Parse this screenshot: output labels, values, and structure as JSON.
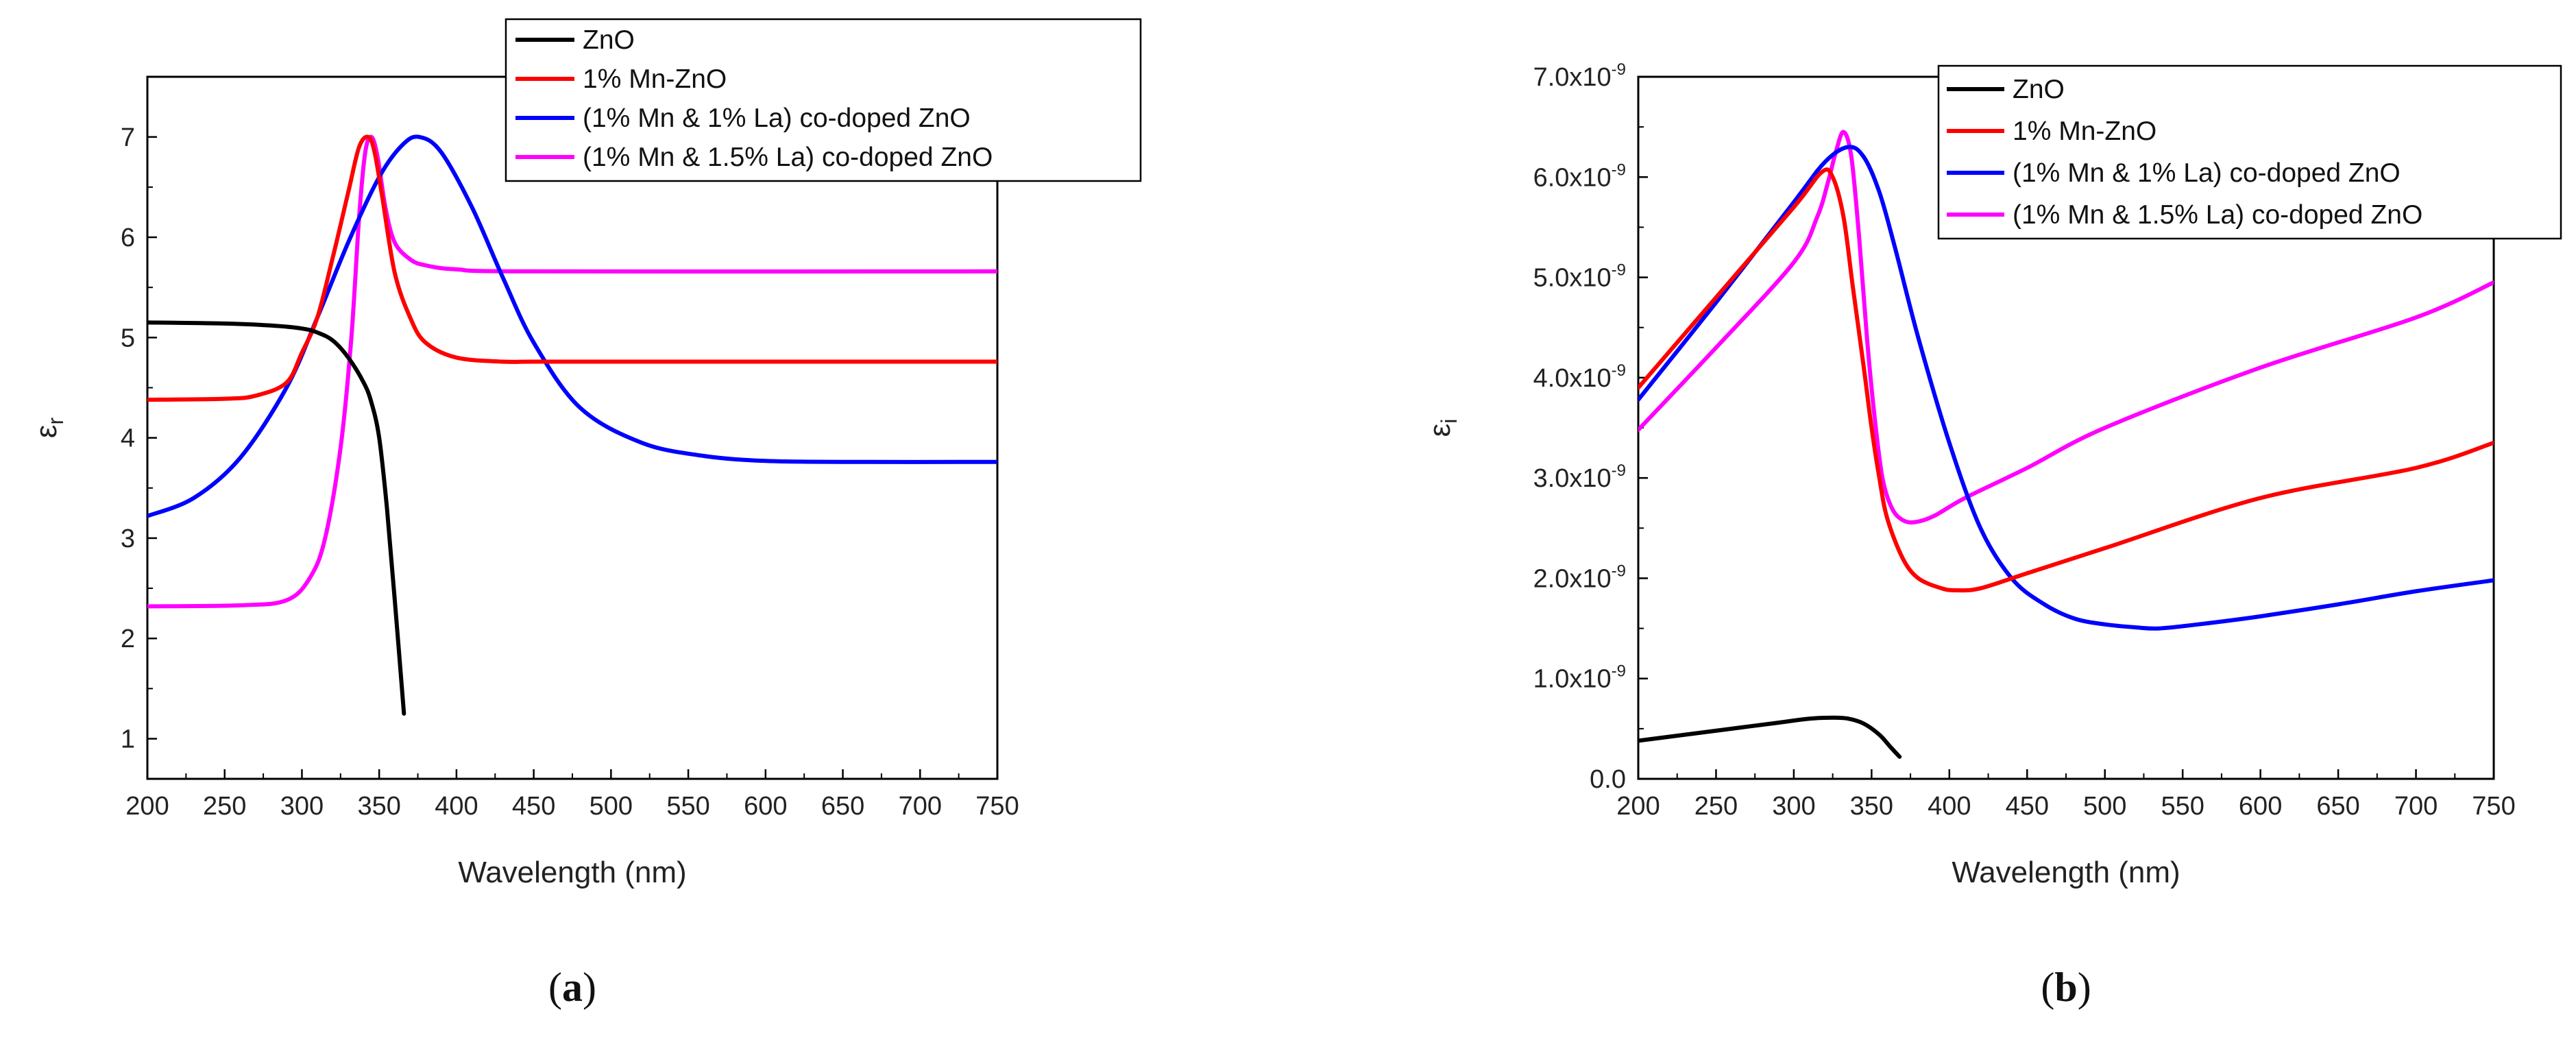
{
  "chart_data": [
    {
      "type": "line",
      "panel": "a",
      "panel_label_open": "(",
      "panel_label_letter": "a",
      "panel_label_close": ")",
      "xlabel": "Wavelength (nm)",
      "ylabel": "εr",
      "ylabel_main": "ε",
      "ylabel_sub": "r",
      "xlim": [
        200,
        750
      ],
      "ylim": [
        0.6,
        7.6
      ],
      "x_ticks": [
        200,
        250,
        300,
        350,
        400,
        450,
        500,
        550,
        600,
        650,
        700,
        750
      ],
      "x_tick_labels": [
        "200",
        "250",
        "300",
        "350",
        "400",
        "450",
        "500",
        "550",
        "600",
        "650",
        "700",
        "750"
      ],
      "y_ticks": [
        1,
        2,
        3,
        4,
        5,
        6,
        7
      ],
      "y_tick_labels": [
        "1",
        "2",
        "3",
        "4",
        "5",
        "6",
        "7"
      ],
      "legend_position": "top-right",
      "series": [
        {
          "name": "ZnO",
          "color": "#000000",
          "x": [
            200,
            250,
            280,
            300,
            310,
            320,
            330,
            340,
            345,
            350,
            355,
            360,
            366
          ],
          "y": [
            5.15,
            5.14,
            5.12,
            5.09,
            5.05,
            4.97,
            4.8,
            4.55,
            4.35,
            4.0,
            3.3,
            2.4,
            1.25
          ]
        },
        {
          "name": "1% Mn-ZnO",
          "color": "#ff0000",
          "x": [
            200,
            250,
            270,
            290,
            300,
            310,
            320,
            330,
            337,
            343,
            347,
            352,
            360,
            370,
            380,
            400,
            430,
            450,
            500,
            750
          ],
          "y": [
            4.38,
            4.39,
            4.42,
            4.55,
            4.85,
            5.2,
            5.8,
            6.45,
            6.9,
            7.0,
            6.85,
            6.4,
            5.65,
            5.2,
            4.95,
            4.8,
            4.76,
            4.76,
            4.76,
            4.76
          ]
        },
        {
          "name": "(1% Mn & 1% La) co-doped ZnO",
          "color": "#0000ff",
          "x": [
            200,
            230,
            260,
            290,
            310,
            330,
            350,
            365,
            376,
            390,
            410,
            430,
            450,
            480,
            520,
            560,
            600,
            650,
            750
          ],
          "y": [
            3.22,
            3.4,
            3.8,
            4.5,
            5.2,
            5.95,
            6.6,
            6.92,
            7.0,
            6.85,
            6.3,
            5.6,
            4.95,
            4.3,
            3.95,
            3.82,
            3.77,
            3.76,
            3.76
          ]
        },
        {
          "name": "(1% Mn & 1.5% La) co-doped ZnO",
          "color": "#ff00ff",
          "x": [
            200,
            260,
            290,
            305,
            315,
            325,
            332,
            337,
            341,
            345,
            349,
            354,
            360,
            370,
            380,
            400,
            450,
            750
          ],
          "y": [
            2.32,
            2.33,
            2.38,
            2.6,
            3.0,
            3.9,
            5.0,
            6.2,
            6.85,
            7.0,
            6.8,
            6.3,
            5.95,
            5.78,
            5.72,
            5.68,
            5.66,
            5.66
          ]
        }
      ]
    },
    {
      "type": "line",
      "panel": "b",
      "panel_label_open": "(",
      "panel_label_letter": "b",
      "panel_label_close": ")",
      "xlabel": "Wavelength (nm)",
      "ylabel": "εi",
      "ylabel_main": "ε",
      "ylabel_sub": "i",
      "xlim": [
        200,
        750
      ],
      "ylim": [
        0,
        7e-09
      ],
      "x_ticks": [
        200,
        250,
        300,
        350,
        400,
        450,
        500,
        550,
        600,
        650,
        700,
        750
      ],
      "x_tick_labels": [
        "200",
        "250",
        "300",
        "350",
        "400",
        "450",
        "500",
        "550",
        "600",
        "650",
        "700",
        "750"
      ],
      "y_ticks": [
        0,
        1e-09,
        2e-09,
        3e-09,
        4e-09,
        5e-09,
        6e-09,
        7e-09
      ],
      "y_tick_labels": [
        {
          "mantissa": "0.0",
          "exp": ""
        },
        {
          "mantissa": "1.0x10",
          "exp": "-9"
        },
        {
          "mantissa": "2.0x10",
          "exp": "-9"
        },
        {
          "mantissa": "3.0x10",
          "exp": "-9"
        },
        {
          "mantissa": "4.0x10",
          "exp": "-9"
        },
        {
          "mantissa": "5.0x10",
          "exp": "-9"
        },
        {
          "mantissa": "6.0x10",
          "exp": "-9"
        },
        {
          "mantissa": "7.0x10",
          "exp": "-9"
        }
      ],
      "legend_position": "top-right",
      "series": [
        {
          "name": "ZnO",
          "color": "#000000",
          "x": [
            200,
            230,
            260,
            290,
            310,
            325,
            335,
            345,
            355,
            362,
            368
          ],
          "y": [
            3.8e-10,
            4.4e-10,
            5e-10,
            5.6e-10,
            6e-10,
            6.1e-10,
            6e-10,
            5.5e-10,
            4.4e-10,
            3.2e-10,
            2.2e-10
          ]
        },
        {
          "name": "1% Mn-ZnO",
          "color": "#ff0000",
          "x": [
            200,
            250,
            300,
            318,
            325,
            332,
            338,
            345,
            350,
            355,
            360,
            370,
            380,
            395,
            405,
            420,
            450,
            500,
            600,
            700,
            750
          ],
          "y": [
            3.9e-09,
            4.8e-09,
            5.7e-09,
            6.05e-09,
            6e-09,
            5.6e-09,
            4.9e-09,
            4.1e-09,
            3.5e-09,
            3e-09,
            2.6e-09,
            2.2e-09,
            2e-09,
            1.9e-09,
            1.88e-09,
            1.9e-09,
            2.05e-09,
            2.3e-09,
            2.8e-09,
            3.1e-09,
            3.35e-09
          ]
        },
        {
          "name": "(1% Mn & 1% La) co-doped ZnO",
          "color": "#0000ff",
          "x": [
            200,
            250,
            300,
            320,
            335,
            345,
            355,
            365,
            380,
            400,
            420,
            440,
            460,
            480,
            500,
            520,
            535,
            560,
            600,
            650,
            700,
            750
          ],
          "y": [
            3.78e-09,
            4.75e-09,
            5.75e-09,
            6.15e-09,
            6.3e-09,
            6.2e-09,
            5.85e-09,
            5.3e-09,
            4.4e-09,
            3.35e-09,
            2.5e-09,
            2e-09,
            1.75e-09,
            1.6e-09,
            1.54e-09,
            1.51e-09,
            1.5e-09,
            1.54e-09,
            1.62e-09,
            1.74e-09,
            1.87e-09,
            1.98e-09
          ]
        },
        {
          "name": "(1% Mn & 1.5% La) co-doped ZnO",
          "color": "#ff00ff",
          "x": [
            200,
            250,
            300,
            315,
            322,
            327,
            332,
            337,
            342,
            347,
            352,
            357,
            363,
            370,
            378,
            390,
            410,
            450,
            500,
            600,
            700,
            750
          ],
          "y": [
            3.48e-09,
            4.3e-09,
            5.15e-09,
            5.6e-09,
            5.95e-09,
            6.25e-09,
            6.45e-09,
            6.2e-09,
            5.4e-09,
            4.4e-09,
            3.6e-09,
            3e-09,
            2.7e-09,
            2.58e-09,
            2.56e-09,
            2.62e-09,
            2.8e-09,
            3.1e-09,
            3.5e-09,
            4.1e-09,
            4.6e-09,
            4.95e-09
          ]
        }
      ]
    }
  ]
}
